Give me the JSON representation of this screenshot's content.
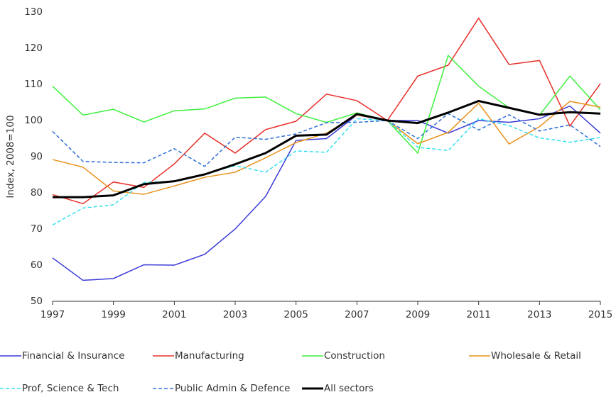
{
  "chart_data": {
    "type": "line",
    "y_label": "Index, 2008=100",
    "x": [
      1997,
      1998,
      1999,
      2000,
      2001,
      2002,
      2003,
      2004,
      2005,
      2006,
      2007,
      2008,
      2009,
      2010,
      2011,
      2012,
      2013,
      2014,
      2015
    ],
    "xlim": [
      1997,
      2015
    ],
    "xticks": [
      1997,
      1999,
      2001,
      2003,
      2005,
      2007,
      2009,
      2011,
      2013,
      2015
    ],
    "ylim": [
      50,
      130
    ],
    "yticks": [
      50,
      60,
      70,
      80,
      90,
      100,
      110,
      120,
      130
    ],
    "grid": false,
    "legend": "bottom",
    "series": [
      {
        "name": "Financial & Insurance",
        "color": "#3a3ad8",
        "linestyle": "solid",
        "linewidth": 1.5,
        "values": [
          62,
          55.8,
          56.3,
          60.1,
          60,
          63,
          70,
          79,
          94.5,
          95,
          101.5,
          100,
          100,
          96.5,
          100,
          99.5,
          100.5,
          104,
          96.5
        ]
      },
      {
        "name": "Manufacturing",
        "color": "#e8302a",
        "linestyle": "solid",
        "linewidth": 1.5,
        "values": [
          79.5,
          77,
          83,
          81.5,
          88,
          96.5,
          91,
          97.5,
          99.8,
          107.3,
          105.5,
          100,
          112.3,
          115.3,
          128.3,
          115.5,
          116.6,
          98.5,
          110.2
        ]
      },
      {
        "name": "Construction",
        "color": "#3ef03e",
        "linestyle": "solid",
        "linewidth": 1.5,
        "values": [
          109.5,
          101.5,
          103.1,
          99.6,
          102.7,
          103.2,
          106.2,
          106.5,
          101.9,
          99.5,
          102.1,
          100,
          91,
          118,
          109.5,
          103.5,
          101.5,
          112.3,
          103
        ]
      },
      {
        "name": "Wholesale & Retail",
        "color": "#e8901a",
        "linestyle": "solid",
        "linewidth": 1.5,
        "values": [
          89.2,
          87.1,
          80.5,
          79.6,
          81.9,
          84.3,
          85.7,
          89.7,
          93.9,
          96.5,
          101.5,
          100,
          93.6,
          96.7,
          104.8,
          93.5,
          98.3,
          105.3,
          103.7
        ]
      },
      {
        "name": "Prof, Science & Tech",
        "color": "#33e0f0",
        "linestyle": "dashed",
        "linewidth": 1.5,
        "values": [
          71.1,
          75.8,
          76.7,
          82.9,
          83.2,
          85.3,
          87.5,
          85.7,
          91.6,
          91.2,
          100.5,
          100,
          92.6,
          91.7,
          100.5,
          98.6,
          95.2,
          94,
          95.3
        ]
      },
      {
        "name": "Public Admin & Defence",
        "color": "#2f6fd6",
        "linestyle": "dashed",
        "linewidth": 1.5,
        "values": [
          97,
          88.7,
          88.4,
          88.3,
          92.2,
          87.3,
          95.4,
          94.8,
          96.3,
          99.4,
          99.5,
          100,
          95,
          101.9,
          97.4,
          101.6,
          97.1,
          98.8,
          92.8
        ]
      },
      {
        "name": "All sectors",
        "color": "#000000",
        "linestyle": "solid",
        "linewidth": 3,
        "values": [
          78.8,
          78.8,
          79.3,
          82.4,
          83.2,
          85.1,
          87.9,
          91.0,
          95.8,
          96.1,
          101.8,
          100,
          99.3,
          102.2,
          105.4,
          103.5,
          101.6,
          102.3,
          101.9
        ]
      }
    ]
  }
}
